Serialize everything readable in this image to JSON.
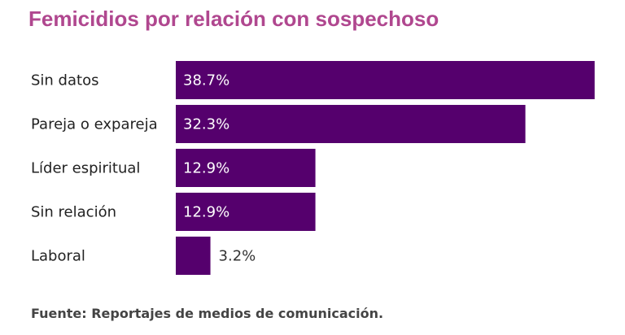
{
  "title": "Femicidios por relación con sospechoso",
  "source": "Fuente: Reportajes de medios de comunicación.",
  "colors": {
    "bar": "#55006d",
    "title": "#b0478f",
    "value_inside": "#ffffff",
    "value_outside": "#333333"
  },
  "chart_data": {
    "type": "bar",
    "orientation": "horizontal",
    "categories": [
      "Sin datos",
      "Pareja o expareja",
      "Líder espiritual",
      "Sin relación",
      "Laboral"
    ],
    "values": [
      38.7,
      32.3,
      12.9,
      12.9,
      3.2
    ],
    "value_labels": [
      "38.7%",
      "32.3%",
      "12.9%",
      "12.9%",
      "3.2%"
    ],
    "unit": "%",
    "grid": false,
    "legend": "none"
  }
}
